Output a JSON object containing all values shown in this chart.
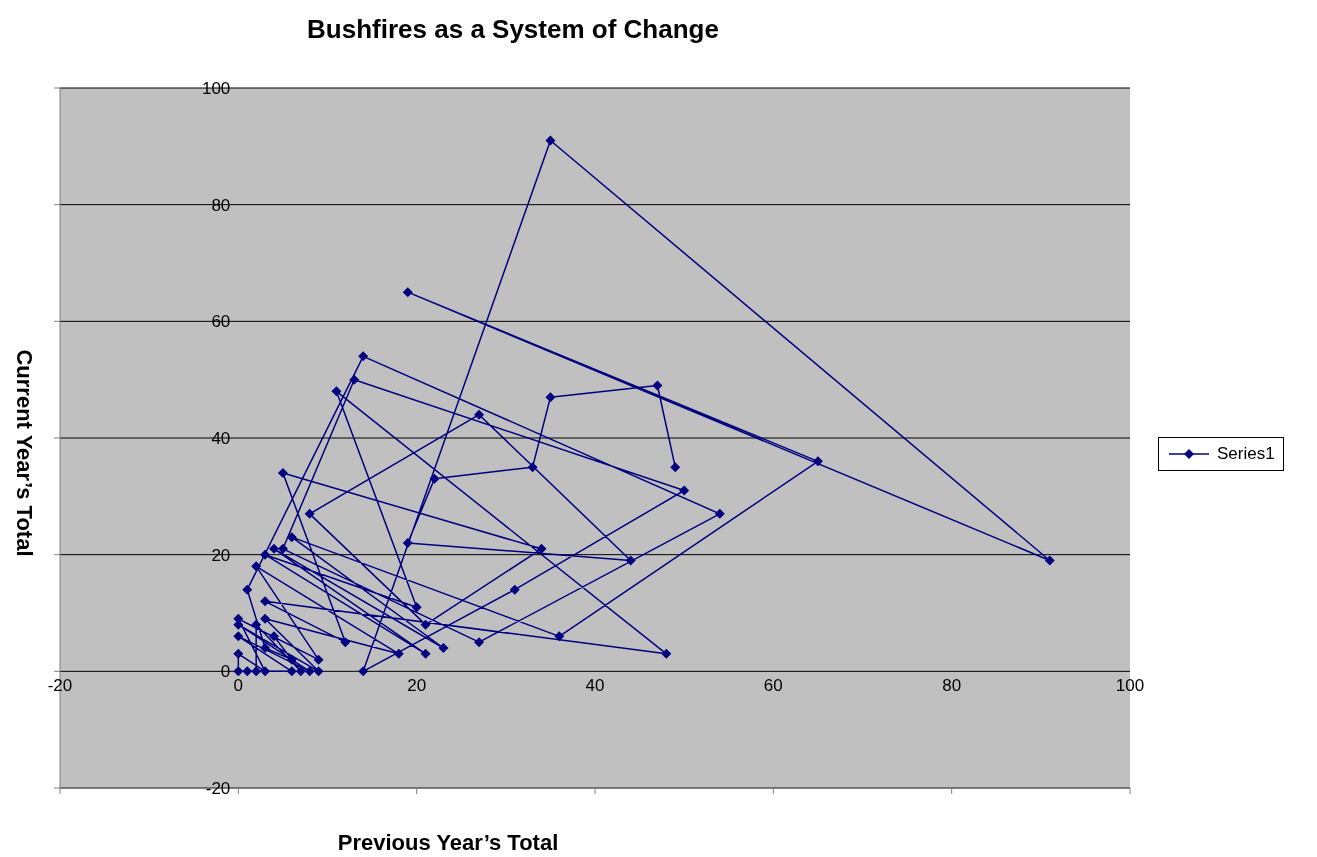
{
  "chart_data": {
    "type": "line",
    "title": "Bushfires as a System of Change",
    "xlabel": "Previous Year’s Total",
    "ylabel": "Current Year’s Total",
    "x": [
      0,
      0,
      3,
      0,
      9,
      2,
      18,
      3,
      9,
      0,
      8,
      0,
      6,
      1,
      2,
      2,
      7,
      4,
      6,
      3,
      1,
      14,
      54,
      27,
      5,
      13,
      50,
      31,
      14,
      35,
      91,
      19,
      65,
      36,
      6,
      23,
      4,
      21,
      3,
      20,
      11,
      48,
      3,
      12,
      5,
      34,
      21,
      8,
      27,
      44,
      19,
      22,
      33,
      35,
      47,
      49
    ],
    "series": [
      {
        "name": "Series1",
        "color": "#000080",
        "values": [
          0,
          3,
          0,
          9,
          2,
          18,
          3,
          9,
          0,
          8,
          0,
          6,
          0,
          0,
          0,
          8,
          0,
          6,
          2,
          4,
          14,
          54,
          27,
          5,
          21,
          50,
          31,
          14,
          0,
          91,
          19,
          65,
          36,
          6,
          23,
          4,
          21,
          3,
          20,
          11,
          48,
          3,
          12,
          5,
          34,
          21,
          8,
          27,
          44,
          19,
          22,
          33,
          35,
          47,
          49,
          35
        ]
      }
    ],
    "xlim": [
      -20,
      100
    ],
    "xticks": [
      -20,
      0,
      20,
      40,
      60,
      80,
      100
    ],
    "ylim": [
      -20,
      100
    ],
    "yticks": [
      -20,
      0,
      20,
      40,
      60,
      80,
      100
    ],
    "grid": "y",
    "legend": "right",
    "marker": "diamond",
    "line_style": "solid"
  }
}
